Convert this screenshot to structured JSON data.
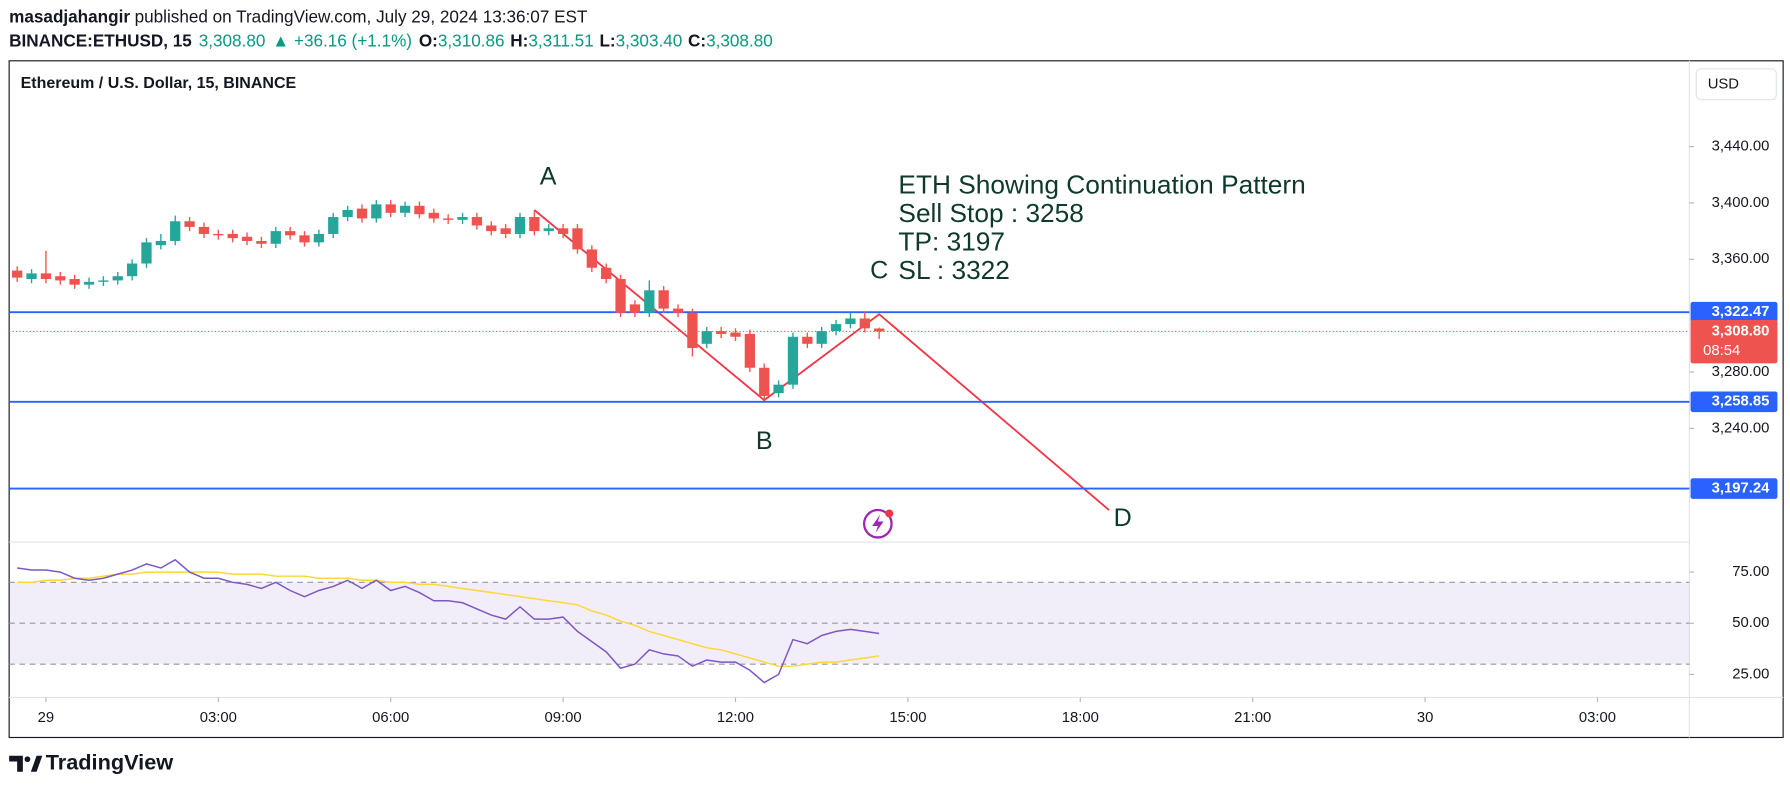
{
  "header": {
    "author": "masadjahangir",
    "byline": "published on TradingView.com, July 29, 2024 13:36:07 EST",
    "symbol": "BINANCE:ETHUSD, 15",
    "last": "3,308.80",
    "change": "▲ +36.16 (+1.1%)",
    "ohlc": [
      {
        "key": "O:",
        "value": "3,310.86"
      },
      {
        "key": "H:",
        "value": "3,311.51"
      },
      {
        "key": "L:",
        "value": "3,303.40"
      },
      {
        "key": "C:",
        "value": "3,308.80"
      }
    ]
  },
  "footer": "TradingView",
  "chart_data": {
    "type": "candlestick",
    "title": "Ethereum / U.S. Dollar, 15, BINANCE",
    "currency": "USD",
    "up_color": "#26a69a",
    "down_color": "#ef5350",
    "x": [
      -0.5,
      -0.25,
      0,
      0.25,
      0.5,
      0.75,
      1,
      1.25,
      1.5,
      1.75,
      2,
      2.25,
      2.5,
      2.75,
      3,
      3.25,
      3.5,
      3.75,
      4,
      4.25,
      4.5,
      4.75,
      5,
      5.25,
      5.5,
      5.75,
      6,
      6.25,
      6.5,
      6.75,
      7,
      7.25,
      7.5,
      7.75,
      8,
      8.25,
      8.5,
      8.75,
      9,
      9.25,
      9.5,
      9.75,
      10,
      10.25,
      10.5,
      10.75,
      11,
      11.25,
      11.5,
      11.75,
      12,
      12.25,
      12.5,
      12.75,
      13,
      13.25,
      13.5,
      13.75,
      14,
      14.25,
      14.5
    ],
    "open": [
      3352,
      3346,
      3350,
      3348,
      3346,
      3342,
      3344,
      3345,
      3348,
      3357,
      3370,
      3373,
      3387,
      3383,
      3378,
      3378,
      3376,
      3373,
      3371,
      3380,
      3377,
      3372,
      3378,
      3390,
      3396,
      3389,
      3399,
      3393,
      3398,
      3393,
      3389,
      3388,
      3390,
      3384,
      3382,
      3378,
      3390,
      3380,
      3382,
      3382,
      3367,
      3354,
      3346,
      3328,
      3322,
      3338,
      3325,
      3322,
      3300,
      3309,
      3308,
      3307,
      3283,
      3265,
      3271,
      3305,
      3300,
      3309,
      3314,
      3318,
      3310.86
    ],
    "high": [
      3355,
      3353,
      3366,
      3351,
      3349,
      3347,
      3348,
      3351,
      3360,
      3375,
      3378,
      3391,
      3390,
      3386,
      3381,
      3381,
      3379,
      3376,
      3383,
      3383,
      3380,
      3381,
      3393,
      3398,
      3399,
      3402,
      3402,
      3401,
      3401,
      3396,
      3392,
      3393,
      3393,
      3387,
      3385,
      3393,
      3395,
      3385,
      3385,
      3385,
      3370,
      3357,
      3349,
      3331,
      3345,
      3341,
      3328,
      3325,
      3312,
      3312,
      3311,
      3310,
      3286,
      3274,
      3308,
      3308,
      3312,
      3317,
      3322,
      3323,
      3311.51
    ],
    "low": [
      3344,
      3343,
      3343,
      3342,
      3339,
      3339,
      3341,
      3342,
      3345,
      3354,
      3367,
      3370,
      3380,
      3375,
      3374,
      3372,
      3370,
      3368,
      3368,
      3374,
      3369,
      3369,
      3375,
      3387,
      3386,
      3386,
      3390,
      3390,
      3389,
      3386,
      3385,
      3385,
      3381,
      3377,
      3375,
      3375,
      3377,
      3377,
      3375,
      3364,
      3351,
      3343,
      3319,
      3319,
      3319,
      3322,
      3319,
      3291,
      3297,
      3304,
      3302,
      3280,
      3260,
      3262,
      3268,
      3297,
      3297,
      3306,
      3311,
      3308,
      3303.4
    ],
    "close": [
      3347,
      3350,
      3346,
      3345,
      3342,
      3344,
      3345,
      3348,
      3357,
      3372,
      3373,
      3387,
      3383,
      3378,
      3377,
      3375,
      3373,
      3371,
      3380,
      3377,
      3372,
      3378,
      3390,
      3395,
      3389,
      3399,
      3393,
      3398,
      3392,
      3389,
      3388,
      3390,
      3384,
      3380,
      3378,
      3390,
      3380,
      3382,
      3378,
      3367,
      3354,
      3346,
      3322,
      3322,
      3338,
      3325,
      3322,
      3297,
      3309,
      3307,
      3305,
      3283,
      3263,
      3271,
      3305,
      3300,
      3309,
      3314,
      3318,
      3311,
      3308.8
    ],
    "xlim": [
      -0.64,
      28.6
    ],
    "xticks": [
      {
        "value": 0,
        "label": "29"
      },
      {
        "value": 3,
        "label": "03:00"
      },
      {
        "value": 6,
        "label": "06:00"
      },
      {
        "value": 9,
        "label": "09:00"
      },
      {
        "value": 12,
        "label": "12:00"
      },
      {
        "value": 15,
        "label": "15:00"
      },
      {
        "value": 18,
        "label": "18:00"
      },
      {
        "value": 21,
        "label": "21:00"
      },
      {
        "value": 24,
        "label": "30"
      },
      {
        "value": 27,
        "label": "03:00"
      }
    ],
    "ylim": [
      3159.3,
      3500.9
    ],
    "yticks": [
      {
        "value": 3440,
        "label": "3,440.00"
      },
      {
        "value": 3400,
        "label": "3,400.00"
      },
      {
        "value": 3360,
        "label": "3,360.00"
      },
      {
        "value": 3280,
        "label": "3,280.00"
      },
      {
        "value": 3240,
        "label": "3,240.00"
      }
    ],
    "levels": [
      {
        "value": 3322.47,
        "label": "3,322.47"
      },
      {
        "value": 3258.85,
        "label": "3,258.85"
      },
      {
        "value": 3197.24,
        "label": "3,197.24"
      }
    ],
    "level_color": "#2962ff",
    "current_label": "3,308.80",
    "countdown": "08:54",
    "pattern": {
      "labels": [
        "A",
        "B",
        "C",
        "D"
      ],
      "x": [
        8.5,
        12.5,
        14.5,
        18.5
      ],
      "y": [
        3395,
        3260,
        3321,
        3182
      ],
      "color": "#f23645"
    },
    "annotation": [
      "ETH Showing Continuation Pattern",
      "Sell Stop : 3258",
      "TP: 3197",
      "SL : 3322"
    ],
    "rsi": {
      "values": [
        77,
        76,
        76,
        75,
        72,
        71,
        72,
        74,
        76,
        79,
        77,
        81,
        75,
        72,
        72,
        70,
        69,
        67,
        70,
        66,
        63,
        66,
        68,
        71,
        67,
        71,
        66,
        68,
        65,
        61,
        61,
        60,
        57,
        54,
        52,
        58,
        52,
        52,
        53,
        46,
        41,
        36,
        28,
        30,
        37,
        35,
        34,
        29,
        32,
        31,
        31,
        27,
        21,
        25,
        42,
        40,
        44,
        46,
        47,
        46,
        45
      ],
      "ma": [
        70,
        70,
        71,
        71,
        72,
        72,
        73,
        74,
        74,
        75,
        75,
        75,
        75,
        75,
        75,
        74,
        74,
        74,
        73,
        73,
        73,
        72,
        72,
        72,
        71,
        71,
        70,
        70,
        69,
        69,
        68,
        67,
        66,
        65,
        64,
        63,
        62,
        61,
        60,
        59,
        56,
        54,
        51,
        49,
        46,
        44,
        42,
        40,
        38,
        37,
        35,
        33,
        31,
        29,
        29,
        30,
        31,
        31,
        32,
        33,
        34
      ],
      "color": "#7e57c2",
      "ma_color": "#fdd835",
      "ylim": [
        13.7,
        89.7
      ],
      "levels": [
        70,
        50,
        30
      ],
      "yticks": [
        {
          "value": 75,
          "label": "75.00"
        },
        {
          "value": 50,
          "label": "50.00"
        },
        {
          "value": 25,
          "label": "25.00"
        }
      ]
    }
  }
}
